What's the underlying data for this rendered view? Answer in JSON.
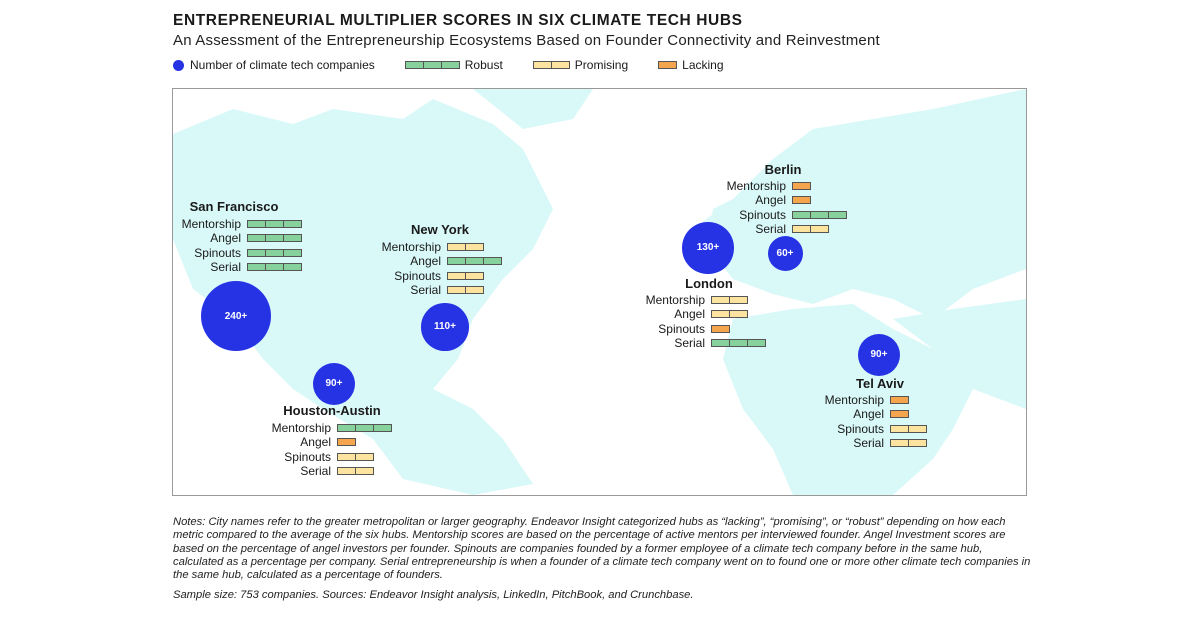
{
  "chart_data": {
    "type": "bubble-map",
    "title": "ENTREPRENEURIAL MULTIPLIER SCORES IN SIX CLIMATE TECH HUBS",
    "subtitle": "An Assessment of the Entrepreneurship Ecosystems Based on Founder Connectivity and Reinvestment",
    "legend": {
      "bubble": "Number of climate tech companies",
      "robust": "Robust",
      "promising": "Promising",
      "lacking": "Lacking"
    },
    "colors": {
      "bubble": "#2633e4",
      "robust": "#86d19c",
      "promising": "#fde3a0",
      "lacking": "#f6a54f",
      "land": "#d9f8f8"
    },
    "metrics": [
      "Mentorship",
      "Angel",
      "Spinouts",
      "Serial"
    ],
    "hubs": [
      {
        "name": "San Francisco",
        "companies": "240+",
        "companies_value": 240,
        "scores": [
          "robust",
          "robust",
          "robust",
          "robust"
        ]
      },
      {
        "name": "New York",
        "companies": "110+",
        "companies_value": 110,
        "scores": [
          "promising",
          "robust",
          "promising",
          "promising"
        ]
      },
      {
        "name": "Houston-Austin",
        "companies": "90+",
        "companies_value": 90,
        "scores": [
          "robust",
          "lacking",
          "promising",
          "promising"
        ]
      },
      {
        "name": "Berlin",
        "companies": "60+",
        "companies_value": 60,
        "scores": [
          "lacking",
          "lacking",
          "robust",
          "promising"
        ]
      },
      {
        "name": "London",
        "companies": "130+",
        "companies_value": 130,
        "scores": [
          "promising",
          "promising",
          "lacking",
          "robust"
        ]
      },
      {
        "name": "Tel Aviv",
        "companies": "90+",
        "companies_value": 90,
        "scores": [
          "lacking",
          "lacking",
          "promising",
          "promising"
        ]
      }
    ]
  },
  "notes": "Notes: City names refer to the greater metropolitan or larger geography. Endeavor Insight categorized hubs as “lacking”, “promising”, or “robust” depending on how each metric compared to the average of the six hubs. Mentorship scores are based on the percentage of active mentors per interviewed founder. Angel Investment scores are based on the percentage of angel investors per founder. Spinouts are companies founded by a former employee of a climate tech company before in the same hub, calculated as a percentage per company. Serial entrepreneurship is when a founder of a climate tech company went on to found one or more other climate tech companies in the same hub, calculated as a percentage of founders.",
  "sample": "Sample size: 753 companies. Sources: Endeavor Insight analysis, LinkedIn, PitchBook, and Crunchbase."
}
